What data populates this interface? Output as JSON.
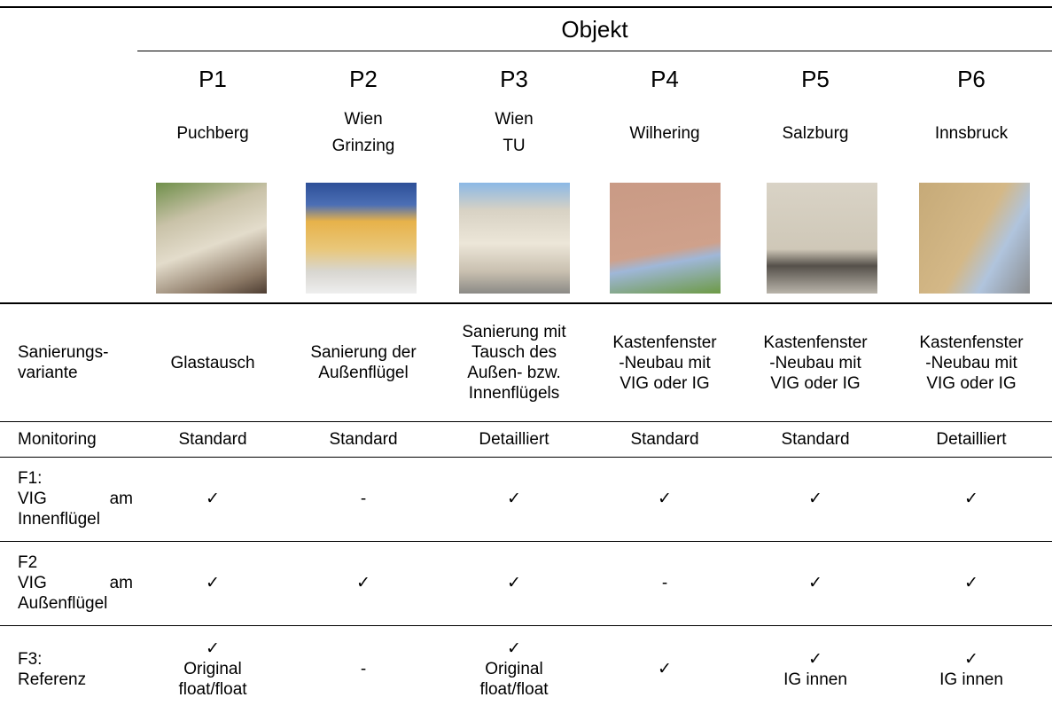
{
  "table": {
    "group_header": "Objekt",
    "columns": [
      {
        "id": "P1",
        "location": [
          "Puchberg"
        ]
      },
      {
        "id": "P2",
        "location": [
          "Wien",
          "Grinzing"
        ]
      },
      {
        "id": "P3",
        "location": [
          "Wien",
          "TU"
        ]
      },
      {
        "id": "P4",
        "location": [
          "Wilhering"
        ]
      },
      {
        "id": "P5",
        "location": [
          "Salzburg"
        ]
      },
      {
        "id": "P6",
        "location": [
          "Innsbruck"
        ]
      }
    ],
    "rows": [
      {
        "label": [
          "Sanierungs-",
          "variante"
        ],
        "cells": [
          [
            "Glastausch"
          ],
          [
            "Sanierung der",
            "Außenflügel"
          ],
          [
            "Sanierung mit",
            "Tausch des",
            "Außen- bzw.",
            "Innenflügels"
          ],
          [
            "Kastenfenster",
            "-Neubau mit",
            "VIG oder IG"
          ],
          [
            "Kastenfenster",
            "-Neubau mit",
            "VIG oder IG"
          ],
          [
            "Kastenfenster",
            "-Neubau mit",
            "VIG oder IG"
          ]
        ]
      },
      {
        "label": [
          "Monitoring"
        ],
        "cells": [
          [
            "Standard"
          ],
          [
            "Standard"
          ],
          [
            "Detailliert"
          ],
          [
            "Standard"
          ],
          [
            "Standard"
          ],
          [
            "Detailliert"
          ]
        ]
      },
      {
        "label": [
          "F1:",
          "VIG am",
          "Innenflügel"
        ],
        "cells": [
          [
            "✓"
          ],
          [
            "-"
          ],
          [
            "✓"
          ],
          [
            "✓"
          ],
          [
            "✓"
          ],
          [
            "✓"
          ]
        ]
      },
      {
        "label": [
          "F2",
          "VIG am",
          "Außenflügel"
        ],
        "cells": [
          [
            "✓"
          ],
          [
            "✓"
          ],
          [
            "✓"
          ],
          [
            "-"
          ],
          [
            "✓"
          ],
          [
            "✓"
          ]
        ]
      },
      {
        "label": [
          "F3:",
          "Referenz"
        ],
        "cells": [
          [
            "✓",
            "Original",
            "float/float"
          ],
          [
            "-"
          ],
          [
            "✓",
            "Original",
            "float/float"
          ],
          [
            "✓"
          ],
          [
            "✓",
            "IG innen"
          ],
          [
            "✓",
            "IG innen"
          ]
        ]
      }
    ]
  }
}
